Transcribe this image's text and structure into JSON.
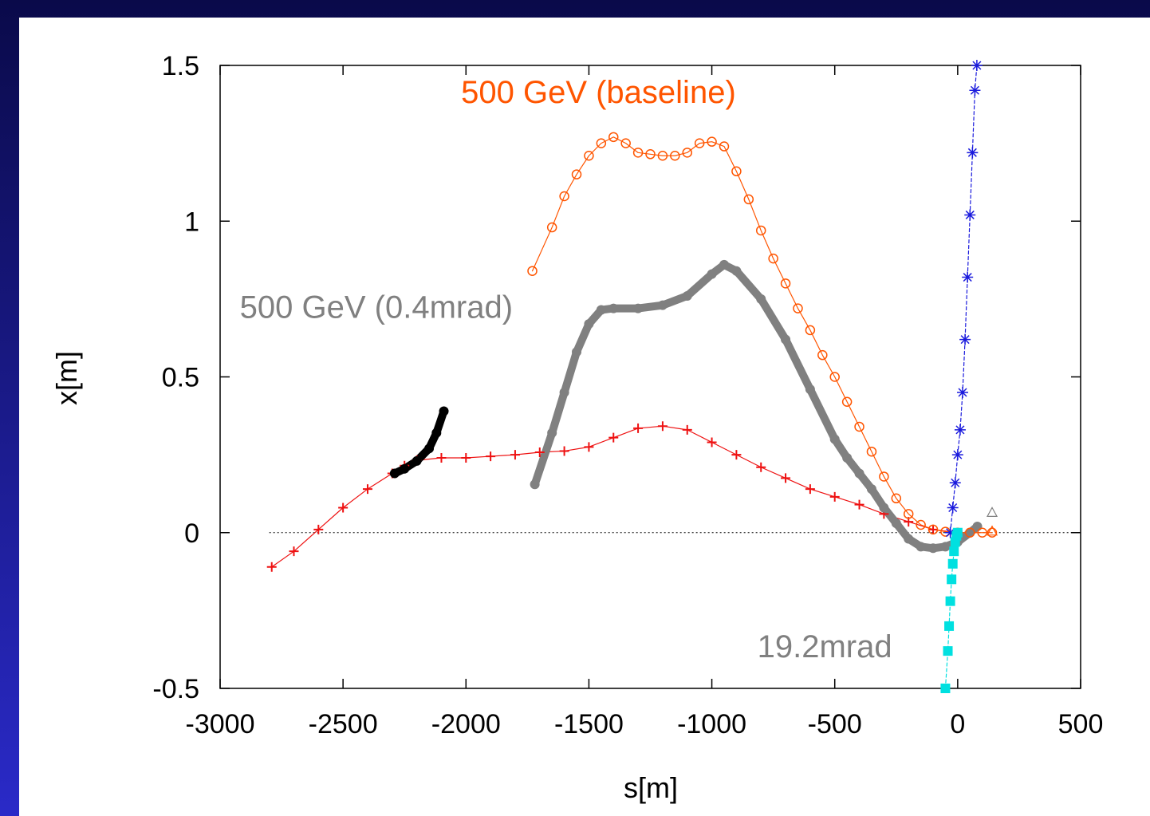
{
  "colors": {
    "slide_frame_dark": "#0a0a4a",
    "slide_frame_light": "#2a2ac8"
  },
  "chart_data": {
    "type": "scatter",
    "xlabel": "s[m]",
    "ylabel": "x[m]",
    "xlim": [
      -3000,
      500
    ],
    "ylim": [
      -0.5,
      1.5
    ],
    "xticks": [
      -3000,
      -2500,
      -2000,
      -1500,
      -1000,
      -500,
      0,
      500
    ],
    "yticks": [
      -0.5,
      0,
      0.5,
      1,
      1.5
    ],
    "xtick_labels": [
      "-3000",
      "-2500",
      "-2000",
      "-1500",
      "-1000",
      "-500",
      "0",
      "500"
    ],
    "ytick_labels": [
      "-0.5",
      "0",
      "0.5",
      "1",
      "1.5"
    ],
    "grid": false,
    "reference_line_y": 0,
    "annotations": [
      {
        "text": "500 GeV (baseline)",
        "x": -2020,
        "y": 1.38,
        "color": "#ff5500"
      },
      {
        "text": "500 GeV (0.4mrad)",
        "x": -2920,
        "y": 0.69,
        "color": "#808080"
      },
      {
        "text": "19.2mrad",
        "x": -815,
        "y": -0.4,
        "color": "#808080"
      }
    ],
    "series": [
      {
        "marker": "plus",
        "color": "#ee1111",
        "points": [
          [
            -2790,
            -0.11
          ],
          [
            -2700,
            -0.06
          ],
          [
            -2600,
            0.01
          ],
          [
            -2500,
            0.08
          ],
          [
            -2400,
            0.14
          ],
          [
            -2300,
            0.19
          ],
          [
            -2250,
            0.215
          ],
          [
            -2200,
            0.232
          ],
          [
            -2100,
            0.24
          ],
          [
            -2000,
            0.24
          ],
          [
            -1900,
            0.245
          ],
          [
            -1800,
            0.25
          ],
          [
            -1700,
            0.258
          ],
          [
            -1600,
            0.262
          ],
          [
            -1500,
            0.275
          ],
          [
            -1400,
            0.305
          ],
          [
            -1300,
            0.335
          ],
          [
            -1200,
            0.342
          ],
          [
            -1100,
            0.33
          ],
          [
            -1000,
            0.29
          ],
          [
            -900,
            0.25
          ],
          [
            -800,
            0.21
          ],
          [
            -700,
            0.175
          ],
          [
            -600,
            0.14
          ],
          [
            -500,
            0.115
          ],
          [
            -400,
            0.09
          ],
          [
            -300,
            0.06
          ],
          [
            -200,
            0.035
          ],
          [
            -100,
            0.01
          ],
          [
            0,
            0.0
          ]
        ]
      },
      {
        "marker": "dot",
        "color": "#000000",
        "points": [
          [
            -2290,
            0.19
          ],
          [
            -2250,
            0.205
          ],
          [
            -2200,
            0.23
          ],
          [
            -2150,
            0.27
          ],
          [
            -2120,
            0.32
          ],
          [
            -2090,
            0.39
          ]
        ]
      },
      {
        "marker": "dot",
        "color": "#808080",
        "points": [
          [
            -1720,
            0.155
          ],
          [
            -1650,
            0.32
          ],
          [
            -1600,
            0.45
          ],
          [
            -1550,
            0.58
          ],
          [
            -1500,
            0.67
          ],
          [
            -1450,
            0.715
          ],
          [
            -1400,
            0.72
          ],
          [
            -1300,
            0.72
          ],
          [
            -1200,
            0.73
          ],
          [
            -1100,
            0.76
          ],
          [
            -1000,
            0.83
          ],
          [
            -950,
            0.86
          ],
          [
            -900,
            0.84
          ],
          [
            -800,
            0.75
          ],
          [
            -700,
            0.62
          ],
          [
            -600,
            0.46
          ],
          [
            -500,
            0.3
          ],
          [
            -450,
            0.24
          ],
          [
            -400,
            0.19
          ],
          [
            -350,
            0.14
          ],
          [
            -300,
            0.08
          ],
          [
            -250,
            0.03
          ],
          [
            -200,
            -0.02
          ],
          [
            -150,
            -0.045
          ],
          [
            -100,
            -0.05
          ],
          [
            -50,
            -0.045
          ],
          [
            0,
            -0.03
          ],
          [
            50,
            0.0
          ],
          [
            80,
            0.02
          ]
        ]
      },
      {
        "marker": "circle",
        "color": "#ff5500",
        "points": [
          [
            -1730,
            0.84
          ],
          [
            -1650,
            0.98
          ],
          [
            -1600,
            1.08
          ],
          [
            -1550,
            1.15
          ],
          [
            -1500,
            1.21
          ],
          [
            -1450,
            1.25
          ],
          [
            -1400,
            1.27
          ],
          [
            -1350,
            1.25
          ],
          [
            -1300,
            1.22
          ],
          [
            -1250,
            1.215
          ],
          [
            -1200,
            1.21
          ],
          [
            -1150,
            1.21
          ],
          [
            -1100,
            1.22
          ],
          [
            -1050,
            1.25
          ],
          [
            -1000,
            1.255
          ],
          [
            -950,
            1.24
          ],
          [
            -900,
            1.16
          ],
          [
            -850,
            1.07
          ],
          [
            -800,
            0.97
          ],
          [
            -750,
            0.88
          ],
          [
            -700,
            0.8
          ],
          [
            -650,
            0.72
          ],
          [
            -600,
            0.65
          ],
          [
            -550,
            0.57
          ],
          [
            -500,
            0.5
          ],
          [
            -450,
            0.42
          ],
          [
            -400,
            0.34
          ],
          [
            -350,
            0.26
          ],
          [
            -300,
            0.18
          ],
          [
            -250,
            0.11
          ],
          [
            -200,
            0.06
          ],
          [
            -150,
            0.025
          ],
          [
            -100,
            0.01
          ],
          [
            -50,
            0.003
          ],
          [
            0,
            0.0
          ],
          [
            50,
            0.0
          ],
          [
            100,
            0.0
          ],
          [
            140,
            0.0
          ]
        ]
      },
      {
        "marker": "star",
        "color": "#1a1add",
        "points": [
          [
            -30,
            0.0
          ],
          [
            -20,
            0.08
          ],
          [
            -10,
            0.16
          ],
          [
            0,
            0.25
          ],
          [
            10,
            0.33
          ],
          [
            20,
            0.45
          ],
          [
            30,
            0.62
          ],
          [
            40,
            0.82
          ],
          [
            50,
            1.02
          ],
          [
            60,
            1.22
          ],
          [
            70,
            1.42
          ],
          [
            78,
            1.5
          ]
        ]
      },
      {
        "marker": "square",
        "color": "#00e0e0",
        "points": [
          [
            -50,
            -0.5
          ],
          [
            -40,
            -0.38
          ],
          [
            -35,
            -0.3
          ],
          [
            -30,
            -0.22
          ],
          [
            -25,
            -0.15
          ],
          [
            -20,
            -0.1
          ],
          [
            -15,
            -0.06
          ],
          [
            -10,
            -0.03
          ],
          [
            -5,
            -0.01
          ],
          [
            0,
            0.0
          ]
        ]
      },
      {
        "marker": "triangle",
        "color": "#808080",
        "points": [
          [
            140,
            0.065
          ]
        ]
      },
      {
        "marker": "triangle",
        "color": "#ff5500",
        "points": [
          [
            140,
            0.005
          ]
        ]
      }
    ]
  }
}
